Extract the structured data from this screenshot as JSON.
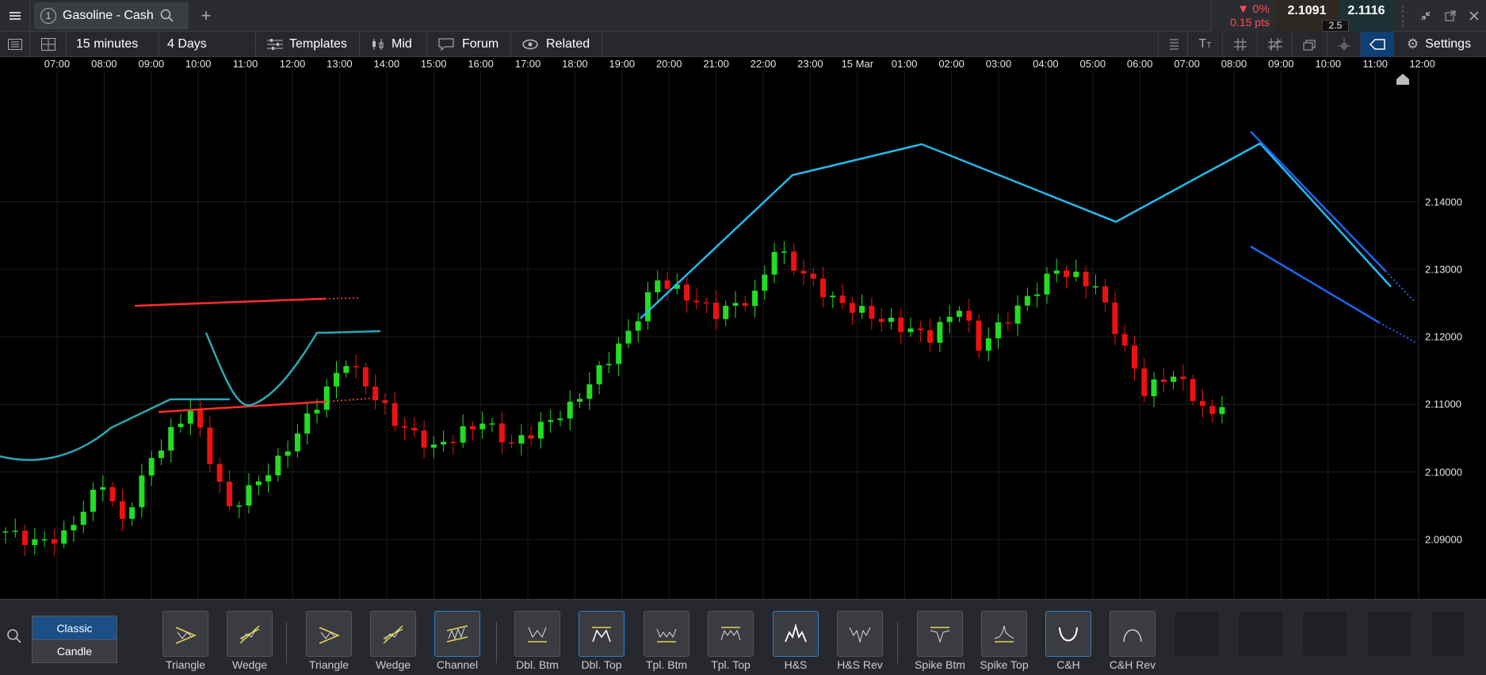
{
  "window": {
    "instrument_title": "Gasoline - Cash",
    "tab_number": "1",
    "change_pct": "▼ 0%",
    "change_pts": "0.15 pts",
    "sell_price": "2.1091",
    "buy_price": "2.1116",
    "spread": "2.5"
  },
  "toolbar": {
    "interval": "15 minutes",
    "range": "4 Days",
    "templates_label": "Templates",
    "mid_label": "Mid",
    "forum_label": "Forum",
    "related_label": "Related",
    "settings_label": "Settings"
  },
  "chart_data": {
    "type": "candlestick",
    "time_labels": [
      "07:00",
      "08:00",
      "09:00",
      "10:00",
      "11:00",
      "12:00",
      "13:00",
      "14:00",
      "15:00",
      "16:00",
      "17:00",
      "18:00",
      "19:00",
      "20:00",
      "21:00",
      "22:00",
      "23:00",
      "15 Mar",
      "01:00",
      "02:00",
      "03:00",
      "04:00",
      "05:00",
      "06:00",
      "07:00",
      "08:00",
      "09:00",
      "10:00",
      "11:00",
      "12:00"
    ],
    "price_labels": [
      "2.14000",
      "2.13000",
      "2.12000",
      "2.11000",
      "2.10000",
      "2.09000"
    ],
    "ylim": [
      2.0812,
      2.1593
    ],
    "up_color": "#22dd22",
    "down_color": "#ee1111",
    "pattern_colors": {
      "channel_top_bottom": "#ff2d2d",
      "cup": "#2aa9b5",
      "zigzag": "#22bbee",
      "wedge": "#1a66ee"
    }
  },
  "bottom": {
    "style_classic": "Classic",
    "style_candle": "Candle",
    "patterns": [
      {
        "label": "Triangle",
        "icon": "triangle-pattern-icon"
      },
      {
        "label": "Wedge",
        "icon": "wedge-pattern-icon"
      },
      {
        "label": "Triangle",
        "icon": "triangle-pattern-icon"
      },
      {
        "label": "Wedge",
        "icon": "wedge-pattern-icon"
      },
      {
        "label": "Channel",
        "icon": "channel-pattern-icon"
      },
      {
        "label": "Dbl. Btm",
        "icon": "double-bottom-icon"
      },
      {
        "label": "Dbl. Top",
        "icon": "double-top-icon"
      },
      {
        "label": "Tpl. Btm",
        "icon": "triple-bottom-icon"
      },
      {
        "label": "Tpl. Top",
        "icon": "triple-top-icon"
      },
      {
        "label": "H&S",
        "icon": "head-and-shoulders-icon"
      },
      {
        "label": "H&S Rev",
        "icon": "head-and-shoulders-reverse-icon"
      },
      {
        "label": "Spike Btm",
        "icon": "spike-bottom-icon"
      },
      {
        "label": "Spike Top",
        "icon": "spike-top-icon"
      },
      {
        "label": "C&H",
        "icon": "cup-and-handle-icon"
      },
      {
        "label": "C&H Rev",
        "icon": "cup-and-handle-reverse-icon"
      }
    ]
  }
}
